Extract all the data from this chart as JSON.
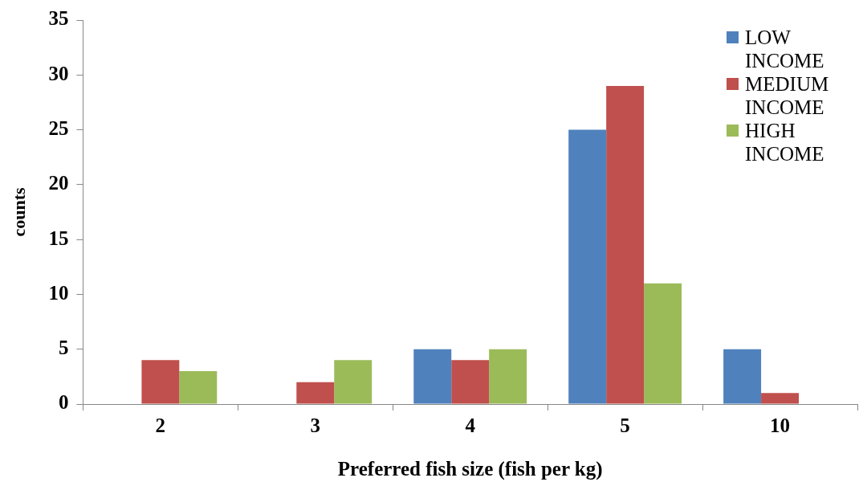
{
  "chart_data": {
    "type": "bar",
    "xlabel": "Preferred fish size (fish per kg)",
    "ylabel": "counts",
    "categories": [
      "2",
      "3",
      "4",
      "5",
      "10"
    ],
    "series": [
      {
        "name": "LOW INCOME",
        "color": "#4f81bd",
        "values": [
          0,
          0,
          5,
          25,
          5
        ]
      },
      {
        "name": "MEDIUM INCOME",
        "color": "#c0504d",
        "values": [
          4,
          2,
          4,
          29,
          1
        ]
      },
      {
        "name": "HIGH INCOME",
        "color": "#9bbb59",
        "values": [
          3,
          4,
          5,
          11,
          0
        ]
      }
    ],
    "ylim": [
      0,
      35
    ],
    "yticks": [
      0,
      5,
      10,
      15,
      20,
      25,
      30,
      35
    ],
    "legend": "top right"
  }
}
